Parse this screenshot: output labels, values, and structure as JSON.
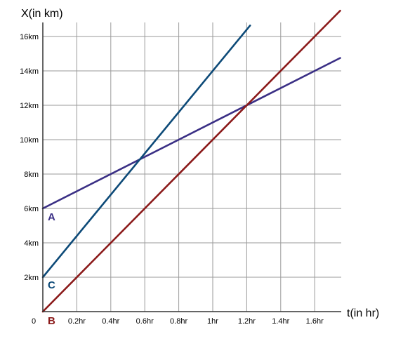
{
  "chart_data": {
    "type": "line",
    "xlabel": "t(in hr)",
    "ylabel": "X(in km)",
    "origin_label": "0",
    "xlim": [
      0,
      1.75
    ],
    "ylim": [
      0,
      17
    ],
    "grid": true,
    "x_ticks": [
      {
        "value": 0.2,
        "label": "0.2hr"
      },
      {
        "value": 0.4,
        "label": "0.4hr"
      },
      {
        "value": 0.6,
        "label": "0.6hr"
      },
      {
        "value": 0.8,
        "label": "0.8hr"
      },
      {
        "value": 1.0,
        "label": "1hr"
      },
      {
        "value": 1.2,
        "label": "1.2hr"
      },
      {
        "value": 1.4,
        "label": "1.4hr"
      },
      {
        "value": 1.6,
        "label": "1.6hr"
      }
    ],
    "y_ticks": [
      {
        "value": 2,
        "label": "2km"
      },
      {
        "value": 4,
        "label": "4km"
      },
      {
        "value": 6,
        "label": "6km"
      },
      {
        "value": 8,
        "label": "8km"
      },
      {
        "value": 10,
        "label": "10km"
      },
      {
        "value": 12,
        "label": "12km"
      },
      {
        "value": 14,
        "label": "14km"
      },
      {
        "value": 16,
        "label": "16km"
      }
    ],
    "series": [
      {
        "name": "A",
        "color": "#3a2f85",
        "x": [
          0,
          1.75
        ],
        "y": [
          6,
          14.75
        ]
      },
      {
        "name": "B",
        "color": "#8b1a1a",
        "x": [
          0,
          1.75
        ],
        "y": [
          0,
          17.5
        ]
      },
      {
        "name": "C",
        "color": "#0d4a78",
        "x": [
          0,
          1.22
        ],
        "y": [
          2,
          16.64
        ]
      }
    ]
  }
}
